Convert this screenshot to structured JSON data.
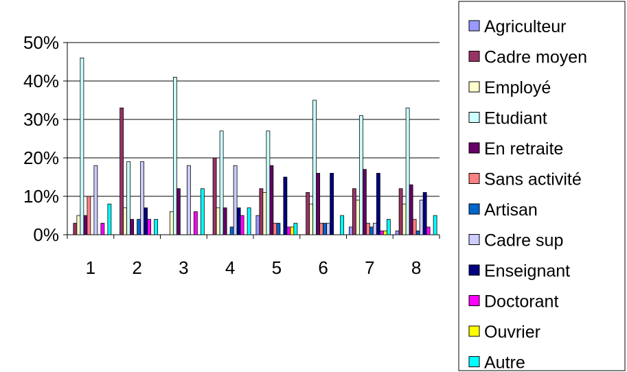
{
  "chart_data": {
    "type": "bar",
    "categories": [
      "1",
      "2",
      "3",
      "4",
      "5",
      "6",
      "7",
      "8"
    ],
    "ylim": [
      0,
      50
    ],
    "yticks": [
      "0%",
      "10%",
      "20%",
      "30%",
      "40%",
      "50%"
    ],
    "grid": true,
    "legend_position": "right",
    "series": [
      {
        "name": "Agriculteur",
        "color": "#9999ff",
        "values": [
          0,
          0,
          0,
          0,
          5,
          0,
          2,
          1
        ]
      },
      {
        "name": "Cadre moyen",
        "color": "#993366",
        "values": [
          3,
          33,
          0,
          20,
          12,
          11,
          12,
          12
        ]
      },
      {
        "name": "Employé",
        "color": "#ffffcc",
        "values": [
          5,
          7,
          6,
          7,
          11,
          8,
          9,
          8
        ]
      },
      {
        "name": "Etudiant",
        "color": "#ccffff",
        "values": [
          46,
          19,
          41,
          27,
          27,
          35,
          31,
          33
        ]
      },
      {
        "name": "En retraite",
        "color": "#660066",
        "values": [
          5,
          4,
          12,
          7,
          18,
          16,
          17,
          13
        ]
      },
      {
        "name": "Sans activité",
        "color": "#ff8080",
        "values": [
          10,
          0,
          0,
          0,
          3,
          3,
          3,
          4
        ]
      },
      {
        "name": "Artisan",
        "color": "#0066cc",
        "values": [
          0,
          4,
          0,
          2,
          3,
          3,
          2,
          1
        ]
      },
      {
        "name": "Cadre sup",
        "color": "#ccccff",
        "values": [
          18,
          19,
          18,
          18,
          0,
          3,
          3,
          9
        ]
      },
      {
        "name": "Enseignant",
        "color": "#000080",
        "values": [
          0,
          7,
          0,
          7,
          15,
          16,
          16,
          11
        ]
      },
      {
        "name": "Doctorant",
        "color": "#ff00ff",
        "values": [
          3,
          4,
          6,
          5,
          2,
          0,
          1,
          2
        ]
      },
      {
        "name": "Ouvrier",
        "color": "#ffff00",
        "values": [
          0,
          0,
          0,
          0,
          2,
          0,
          1,
          0
        ]
      },
      {
        "name": "Autre",
        "color": "#00ffff",
        "values": [
          8,
          4,
          12,
          7,
          3,
          5,
          4,
          5
        ]
      }
    ]
  }
}
